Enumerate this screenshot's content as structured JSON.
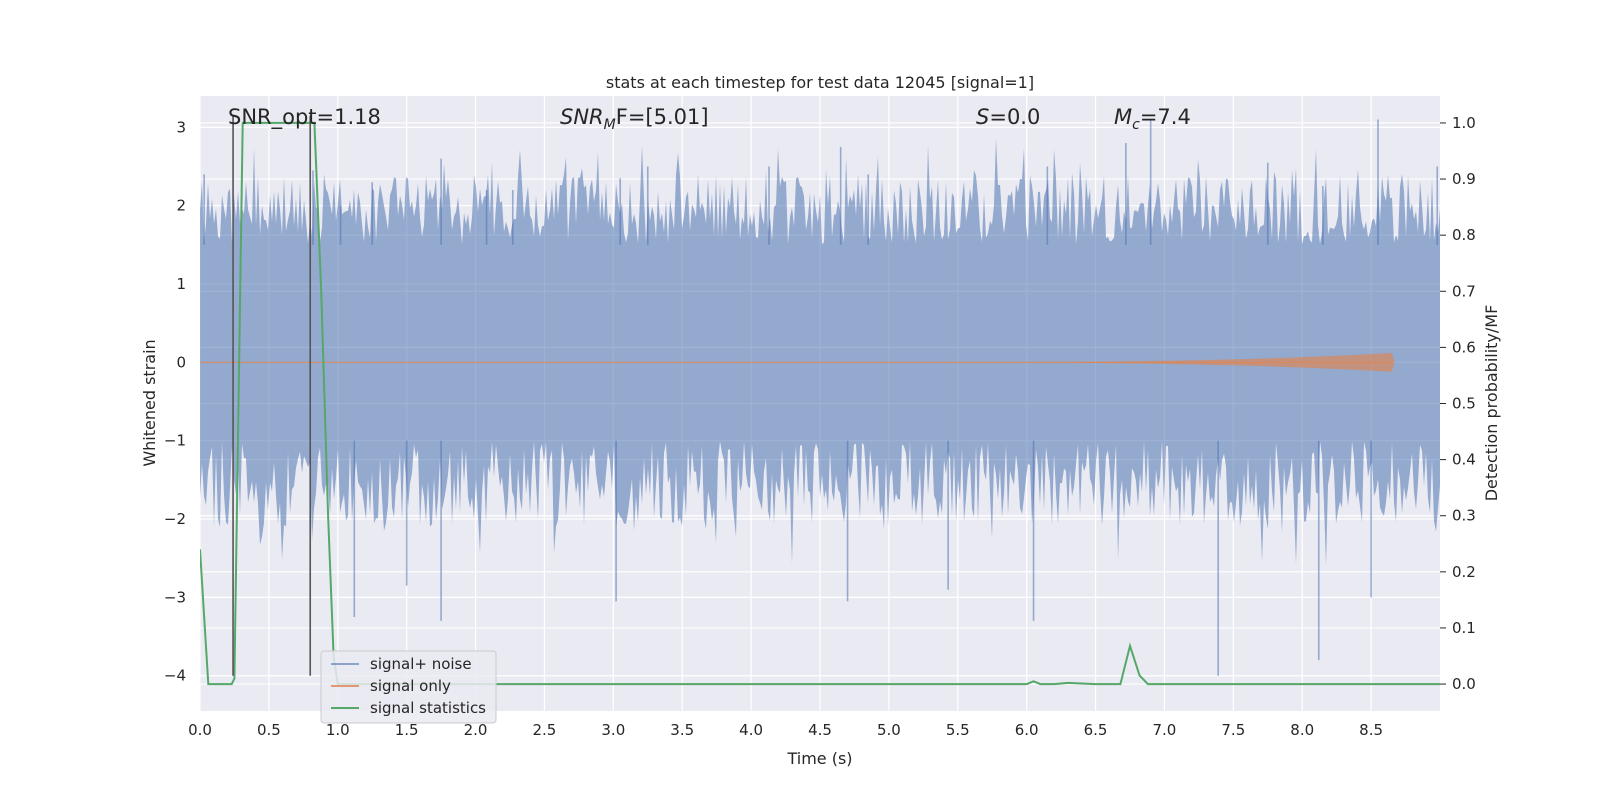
{
  "chart_data": {
    "type": "line",
    "title": "stats at each timestep for test data 12045 [signal=1]",
    "xlabel": "Time (s)",
    "ylabel": "Whitened strain",
    "y2label": "Detection probability/MF",
    "xlim": [
      0.0,
      9.0
    ],
    "ylim": [
      -4.45,
      3.4
    ],
    "y2lim": [
      -0.048,
      1.048
    ],
    "xticks": [
      0.0,
      0.5,
      1.0,
      1.5,
      2.0,
      2.5,
      3.0,
      3.5,
      4.0,
      4.5,
      5.0,
      5.5,
      6.0,
      6.5,
      7.0,
      7.5,
      8.0,
      8.5
    ],
    "xtick_labels": [
      "0.0",
      "0.5",
      "1.0",
      "1.5",
      "2.0",
      "2.5",
      "3.0",
      "3.5",
      "4.0",
      "4.5",
      "5.0",
      "5.5",
      "6.0",
      "6.5",
      "7.0",
      "7.5",
      "8.0",
      "8.5"
    ],
    "yticks": [
      -4,
      -3,
      -2,
      -1,
      0,
      1,
      2,
      3
    ],
    "ytick_labels": [
      "−4",
      "−3",
      "−2",
      "−1",
      "0",
      "1",
      "2",
      "3"
    ],
    "y2ticks": [
      0.0,
      0.1,
      0.2,
      0.3,
      0.4,
      0.5,
      0.6,
      0.7,
      0.8,
      0.9,
      1.0
    ],
    "y2tick_labels": [
      "0.0",
      "0.1",
      "0.2",
      "0.3",
      "0.4",
      "0.5",
      "0.6",
      "0.7",
      "0.8",
      "0.9",
      "1.0"
    ],
    "grid": true,
    "legend_position": "lower-left",
    "annotations": [
      {
        "id": "snr-opt",
        "text": "SNR_opt=1.18",
        "x": 0.19,
        "y": 3.18
      },
      {
        "id": "snr-mf",
        "text": "SNR_MF=[5.01]",
        "x": 2.6,
        "y": 3.18,
        "main": "SNR",
        "sub": "M",
        "rest": "F=[5.01]"
      },
      {
        "id": "s-value",
        "text": "S=0.0",
        "x": 5.6,
        "y": 3.18,
        "main": "S",
        "rest": "=0.0"
      },
      {
        "id": "mc-value",
        "text": "M_c=7.4",
        "x": 6.6,
        "y": 3.18,
        "main": "M",
        "sub": "c",
        "rest": "=7.4"
      }
    ],
    "vlines": [
      0.24,
      0.8
    ],
    "series": [
      {
        "name": "signal+ noise",
        "color": "#4c72b0",
        "axis": "left",
        "description": "whitened noisy strain, approx. 4096 Hz samples, amplitude mostly within -2.3 to 2.3, peaks near +3.1 and -4.0",
        "peaks": [
          [
            0.03,
            2.4
          ],
          [
            0.82,
            2.45
          ],
          [
            1.02,
            2.0
          ],
          [
            1.25,
            2.3
          ],
          [
            1.75,
            2.6
          ],
          [
            2.08,
            2.2
          ],
          [
            2.27,
            2.2
          ],
          [
            3.05,
            2.35
          ],
          [
            3.25,
            2.5
          ],
          [
            4.13,
            2.5
          ],
          [
            4.65,
            2.75
          ],
          [
            4.85,
            2.4
          ],
          [
            6.15,
            2.5
          ],
          [
            6.72,
            2.8
          ],
          [
            6.9,
            3.1
          ],
          [
            7.75,
            2.55
          ],
          [
            8.15,
            2.25
          ],
          [
            8.55,
            3.1
          ],
          [
            8.98,
            2.5
          ],
          [
            1.5,
            -2.85
          ],
          [
            1.75,
            -3.3
          ],
          [
            1.12,
            -3.25
          ],
          [
            3.02,
            -3.05
          ],
          [
            4.7,
            -3.05
          ],
          [
            5.43,
            -2.9
          ],
          [
            6.05,
            -3.3
          ],
          [
            7.39,
            -4.0
          ],
          [
            8.12,
            -3.8
          ],
          [
            8.5,
            -3.0
          ]
        ]
      },
      {
        "name": "signal only",
        "color": "#dd8452",
        "axis": "left",
        "description": "chirp signal growing toward merger near t = 8.65 s",
        "t_merger": 8.65,
        "peak_amplitude": 0.12
      },
      {
        "name": "signal statistics",
        "color": "#55a868",
        "axis": "right",
        "x": [
          0.0,
          0.06,
          0.1,
          0.23,
          0.25,
          0.31,
          0.34,
          0.5,
          0.6,
          0.7,
          0.79,
          0.83,
          0.88,
          0.93,
          0.97,
          1.0,
          1.5,
          2.0,
          2.5,
          3.0,
          3.5,
          4.0,
          4.5,
          5.0,
          5.5,
          6.0,
          6.05,
          6.1,
          6.2,
          6.3,
          6.5,
          6.68,
          6.75,
          6.82,
          6.88,
          7.0,
          7.5,
          8.0,
          8.5,
          9.0
        ],
        "values": [
          0.24,
          0.0,
          0.0,
          0.0,
          0.01,
          1.0,
          1.0,
          1.0,
          1.0,
          1.0,
          1.0,
          1.0,
          0.7,
          0.3,
          0.05,
          0.0,
          0.0,
          0.0,
          0.0,
          0.0,
          0.0,
          0.0,
          0.0,
          0.0,
          0.0,
          0.0,
          0.005,
          0.0,
          0.0,
          0.002,
          0.0,
          0.0,
          0.068,
          0.015,
          0.0,
          0.0,
          0.0,
          0.0,
          0.0,
          0.0
        ]
      }
    ]
  }
}
